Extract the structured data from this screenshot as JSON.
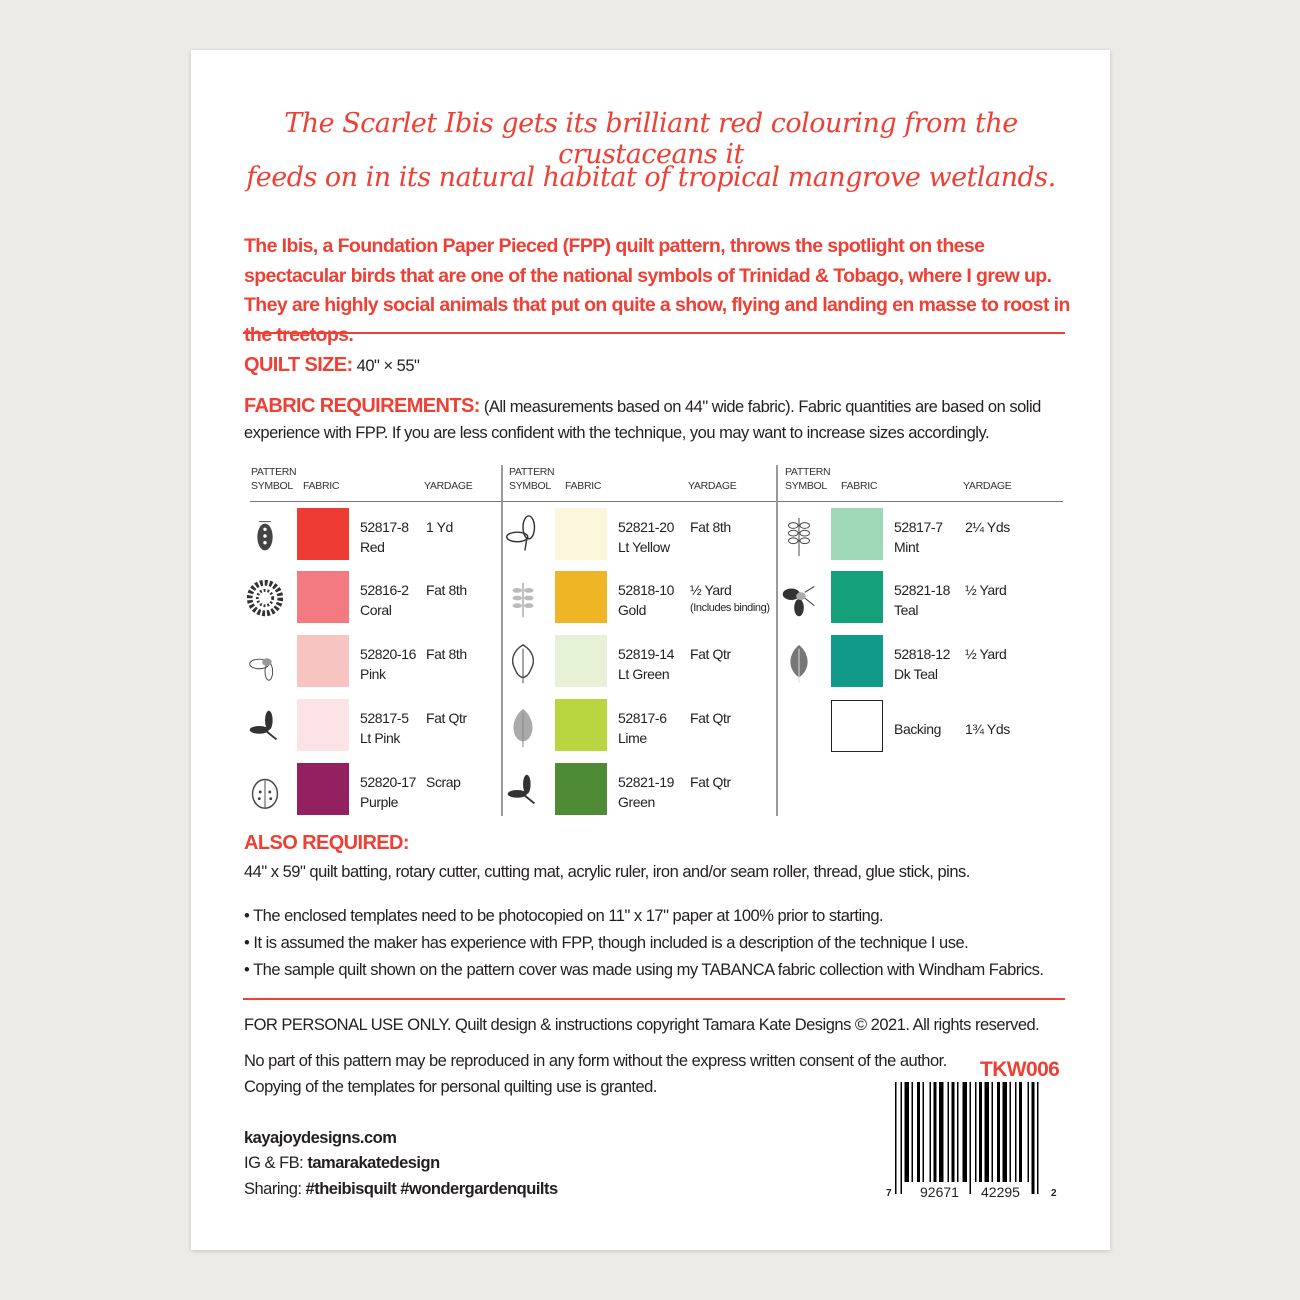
{
  "script_heading": [
    "The Scarlet Ibis gets its brilliant red colouring from the crustaceans it",
    "feeds on in its natural habitat of tropical mangrove wetlands."
  ],
  "intro": "The Ibis, a Foundation Paper Pieced (FPP) quilt pattern, throws the spotlight on these spectacular birds that are one of the national symbols of Trinidad & Tobago, where I grew up. They are highly social animals that put on quite a show, flying and landing en masse to roost in the treetops.",
  "quilt_size": {
    "label": "QUILT SIZE:",
    "value": "40\" × 55\""
  },
  "fabric_requirements": {
    "label": "FABRIC REQUIREMENTS:",
    "text": "(All measurements based on 44\" wide fabric). Fabric quantities are based on solid experience with FPP. If you are less confident with the technique, you may want to increase sizes accordingly."
  },
  "table_headers": {
    "symbol": "PATTERN SYMBOL",
    "fabric": "FABRIC",
    "yardage": "YARDAGE"
  },
  "columns": [
    [
      {
        "icon": "beetle-icon",
        "code": "52817-8",
        "name": "Red",
        "yardage": "1 Yd",
        "color": "#ee3b33"
      },
      {
        "icon": "flower-icon",
        "code": "52816-2",
        "name": "Coral",
        "yardage": "Fat 8th",
        "color": "#f47a82"
      },
      {
        "icon": "firefly-icon",
        "code": "52820-16",
        "name": "Pink",
        "yardage": "Fat 8th",
        "color": "#f7c4c2"
      },
      {
        "icon": "dragonfly-icon",
        "code": "52817-5",
        "name": "Lt Pink",
        "yardage": "Fat Qtr",
        "color": "#fbe3e6"
      },
      {
        "icon": "ladybug-icon",
        "code": "52820-17",
        "name": "Purple",
        "yardage": "Scrap",
        "color": "#93215f"
      }
    ],
    [
      {
        "icon": "butterfly-icon",
        "code": "52821-20",
        "name": "Lt Yellow",
        "yardage": "Fat 8th",
        "color": "#fbf6dc"
      },
      {
        "icon": "sprig-icon",
        "code": "52818-10",
        "name": "Gold",
        "yardage": "½ Yard",
        "note": "(Includes binding)",
        "color": "#f0b525"
      },
      {
        "icon": "oak-leaf-icon",
        "code": "52819-14",
        "name": "Lt Green",
        "yardage": "Fat Qtr",
        "color": "#e6f2d6"
      },
      {
        "icon": "leaf-icon",
        "code": "52817-6",
        "name": "Lime",
        "yardage": "Fat Qtr",
        "color": "#b8d640"
      },
      {
        "icon": "dragonfly-icon",
        "code": "52821-19",
        "name": "Green",
        "yardage": "Fat Qtr",
        "color": "#4f8a34"
      }
    ],
    [
      {
        "icon": "fern-icon",
        "code": "52817-7",
        "name": "Mint",
        "yardage": "2¼ Yds",
        "color": "#9fd8b4"
      },
      {
        "icon": "moth-icon",
        "code": "52821-18",
        "name": "Teal",
        "yardage": "½ Yard",
        "color": "#14a07a"
      },
      {
        "icon": "birch-leaf-icon",
        "code": "52818-12",
        "name": "Dk Teal",
        "yardage": "½ Yard",
        "color": "#11998a"
      },
      {
        "icon": "",
        "code": "Backing",
        "name": "",
        "yardage": "1¾ Yds",
        "color": "#ffffff"
      }
    ]
  ],
  "also_required": {
    "label": "ALSO REQUIRED:",
    "text": "44\" x 59\" quilt batting, rotary cutter, cutting mat, acrylic ruler, iron and/or seam roller, thread, glue stick, pins."
  },
  "bullets": [
    "• The enclosed templates need to be photocopied on 11\" x 17\" paper at 100% prior to starting.",
    "• It is assumed the maker has experience with FPP, though included is a description of the technique I use.",
    "• The sample quilt shown on the pattern cover was made using my TABANCA fabric collection with Windham Fabrics."
  ],
  "copyright": "FOR PERSONAL USE ONLY. Quilt design & instructions copyright Tamara Kate Designs © 2021. All rights reserved.",
  "reproduction": [
    "No part of this pattern may be reproduced in any form without the express written consent of the author.",
    "Copying of the templates for personal quilting use is granted."
  ],
  "website": "kayajoydesigns.com",
  "social": {
    "label": "IG & FB: ",
    "handle": "tamarakatedesign"
  },
  "sharing": {
    "label": "Sharing: ",
    "tags": "#theibisquilt #wondergardenquilts"
  },
  "product_code": "TKW006",
  "barcode": {
    "left": "7",
    "group1": "92671",
    "group2": "42295",
    "right": "2"
  },
  "accent_color": "#ee4035"
}
